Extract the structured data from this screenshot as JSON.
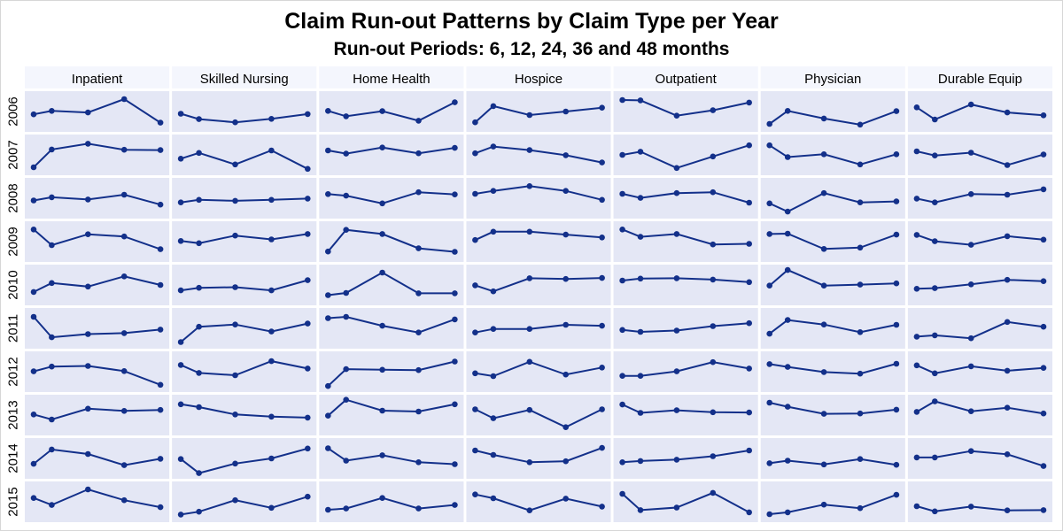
{
  "chart_data": {
    "type": "line",
    "title": "Claim Run-out Patterns by Claim Type per Year",
    "subtitle": "Run-out Periods: 6, 12, 24, 36 and 48 months",
    "x": [
      6,
      12,
      24,
      36,
      48
    ],
    "ylim": [
      0,
      1
    ],
    "columns": [
      "Inpatient",
      "Skilled Nursing",
      "Home Health",
      "Hospice",
      "Outpatient",
      "Physician",
      "Durable Equip"
    ],
    "rows": [
      "2006",
      "2007",
      "2008",
      "2009",
      "2010",
      "2011",
      "2012",
      "2013",
      "2014",
      "2015"
    ],
    "panels": [
      [
        [
          0.41,
          0.52,
          0.47,
          0.89,
          0.15
        ],
        [
          0.43,
          0.26,
          0.16,
          0.27,
          0.42
        ],
        [
          0.52,
          0.35,
          0.51,
          0.21,
          0.79
        ],
        [
          0.16,
          0.67,
          0.39,
          0.5,
          0.62
        ],
        [
          0.86,
          0.85,
          0.37,
          0.54,
          0.78
        ],
        [
          0.11,
          0.52,
          0.28,
          0.09,
          0.51
        ],
        [
          0.63,
          0.25,
          0.72,
          0.47,
          0.38
        ]
      ],
      [
        [
          0.11,
          0.67,
          0.85,
          0.66,
          0.65
        ],
        [
          0.38,
          0.56,
          0.2,
          0.64,
          0.06
        ],
        [
          0.64,
          0.54,
          0.73,
          0.55,
          0.72
        ],
        [
          0.55,
          0.76,
          0.65,
          0.49,
          0.26
        ],
        [
          0.5,
          0.6,
          0.09,
          0.45,
          0.8
        ],
        [
          0.8,
          0.43,
          0.52,
          0.2,
          0.52
        ],
        [
          0.61,
          0.48,
          0.57,
          0.18,
          0.51
        ]
      ],
      [
        [
          0.43,
          0.53,
          0.46,
          0.61,
          0.3
        ],
        [
          0.37,
          0.45,
          0.42,
          0.45,
          0.49
        ],
        [
          0.63,
          0.58,
          0.34,
          0.69,
          0.62
        ],
        [
          0.64,
          0.73,
          0.88,
          0.73,
          0.45
        ],
        [
          0.64,
          0.51,
          0.66,
          0.69,
          0.36
        ],
        [
          0.34,
          0.08,
          0.66,
          0.37,
          0.4
        ],
        [
          0.49,
          0.37,
          0.63,
          0.61,
          0.78
        ]
      ],
      [
        [
          0.88,
          0.39,
          0.73,
          0.66,
          0.26
        ],
        [
          0.52,
          0.45,
          0.69,
          0.57,
          0.74
        ],
        [
          0.19,
          0.87,
          0.74,
          0.29,
          0.18
        ],
        [
          0.55,
          0.81,
          0.81,
          0.72,
          0.63
        ],
        [
          0.88,
          0.65,
          0.74,
          0.41,
          0.43
        ],
        [
          0.74,
          0.75,
          0.27,
          0.31,
          0.72
        ],
        [
          0.71,
          0.51,
          0.4,
          0.67,
          0.56
        ]
      ],
      [
        [
          0.28,
          0.56,
          0.45,
          0.77,
          0.5
        ],
        [
          0.33,
          0.41,
          0.43,
          0.33,
          0.65
        ],
        [
          0.18,
          0.25,
          0.89,
          0.24,
          0.24
        ],
        [
          0.49,
          0.3,
          0.71,
          0.69,
          0.72
        ],
        [
          0.64,
          0.7,
          0.71,
          0.67,
          0.59
        ],
        [
          0.48,
          0.97,
          0.48,
          0.51,
          0.55
        ],
        [
          0.38,
          0.4,
          0.52,
          0.66,
          0.62
        ]
      ],
      [
        [
          0.86,
          0.22,
          0.32,
          0.35,
          0.46
        ],
        [
          0.07,
          0.55,
          0.62,
          0.4,
          0.65
        ],
        [
          0.82,
          0.86,
          0.58,
          0.37,
          0.78
        ],
        [
          0.37,
          0.48,
          0.48,
          0.61,
          0.58
        ],
        [
          0.45,
          0.39,
          0.43,
          0.57,
          0.66
        ],
        [
          0.33,
          0.76,
          0.62,
          0.38,
          0.61
        ],
        [
          0.24,
          0.28,
          0.19,
          0.7,
          0.55
        ]
      ],
      [
        [
          0.51,
          0.66,
          0.68,
          0.52,
          0.09
        ],
        [
          0.71,
          0.46,
          0.39,
          0.83,
          0.6
        ],
        [
          0.05,
          0.58,
          0.56,
          0.55,
          0.82
        ],
        [
          0.45,
          0.36,
          0.81,
          0.41,
          0.63
        ],
        [
          0.37,
          0.37,
          0.51,
          0.8,
          0.6
        ],
        [
          0.74,
          0.65,
          0.49,
          0.44,
          0.75
        ],
        [
          0.7,
          0.45,
          0.67,
          0.53,
          0.62
        ]
      ],
      [
        [
          0.52,
          0.36,
          0.7,
          0.63,
          0.66
        ],
        [
          0.84,
          0.75,
          0.52,
          0.45,
          0.42
        ],
        [
          0.48,
          0.98,
          0.64,
          0.61,
          0.84
        ],
        [
          0.68,
          0.4,
          0.66,
          0.12,
          0.68
        ],
        [
          0.83,
          0.57,
          0.65,
          0.59,
          0.58
        ],
        [
          0.89,
          0.76,
          0.54,
          0.55,
          0.67
        ],
        [
          0.6,
          0.93,
          0.62,
          0.73,
          0.55
        ]
      ],
      [
        [
          0.33,
          0.78,
          0.64,
          0.29,
          0.49
        ],
        [
          0.48,
          0.04,
          0.34,
          0.5,
          0.81
        ],
        [
          0.82,
          0.43,
          0.6,
          0.38,
          0.32
        ],
        [
          0.75,
          0.61,
          0.38,
          0.41,
          0.83
        ],
        [
          0.38,
          0.42,
          0.46,
          0.57,
          0.75
        ],
        [
          0.35,
          0.43,
          0.31,
          0.48,
          0.3
        ],
        [
          0.53,
          0.53,
          0.73,
          0.63,
          0.26
        ]
      ],
      [
        [
          0.62,
          0.4,
          0.89,
          0.55,
          0.33
        ],
        [
          0.1,
          0.19,
          0.55,
          0.31,
          0.66
        ],
        [
          0.25,
          0.29,
          0.62,
          0.29,
          0.4
        ],
        [
          0.73,
          0.61,
          0.23,
          0.6,
          0.35
        ],
        [
          0.75,
          0.24,
          0.32,
          0.78,
          0.17
        ],
        [
          0.11,
          0.17,
          0.41,
          0.3,
          0.72
        ],
        [
          0.36,
          0.2,
          0.35,
          0.23,
          0.24
        ]
      ]
    ],
    "colors": {
      "line": "#13308a",
      "panel": "#e4e7f5",
      "header": "#f4f6fd"
    }
  }
}
